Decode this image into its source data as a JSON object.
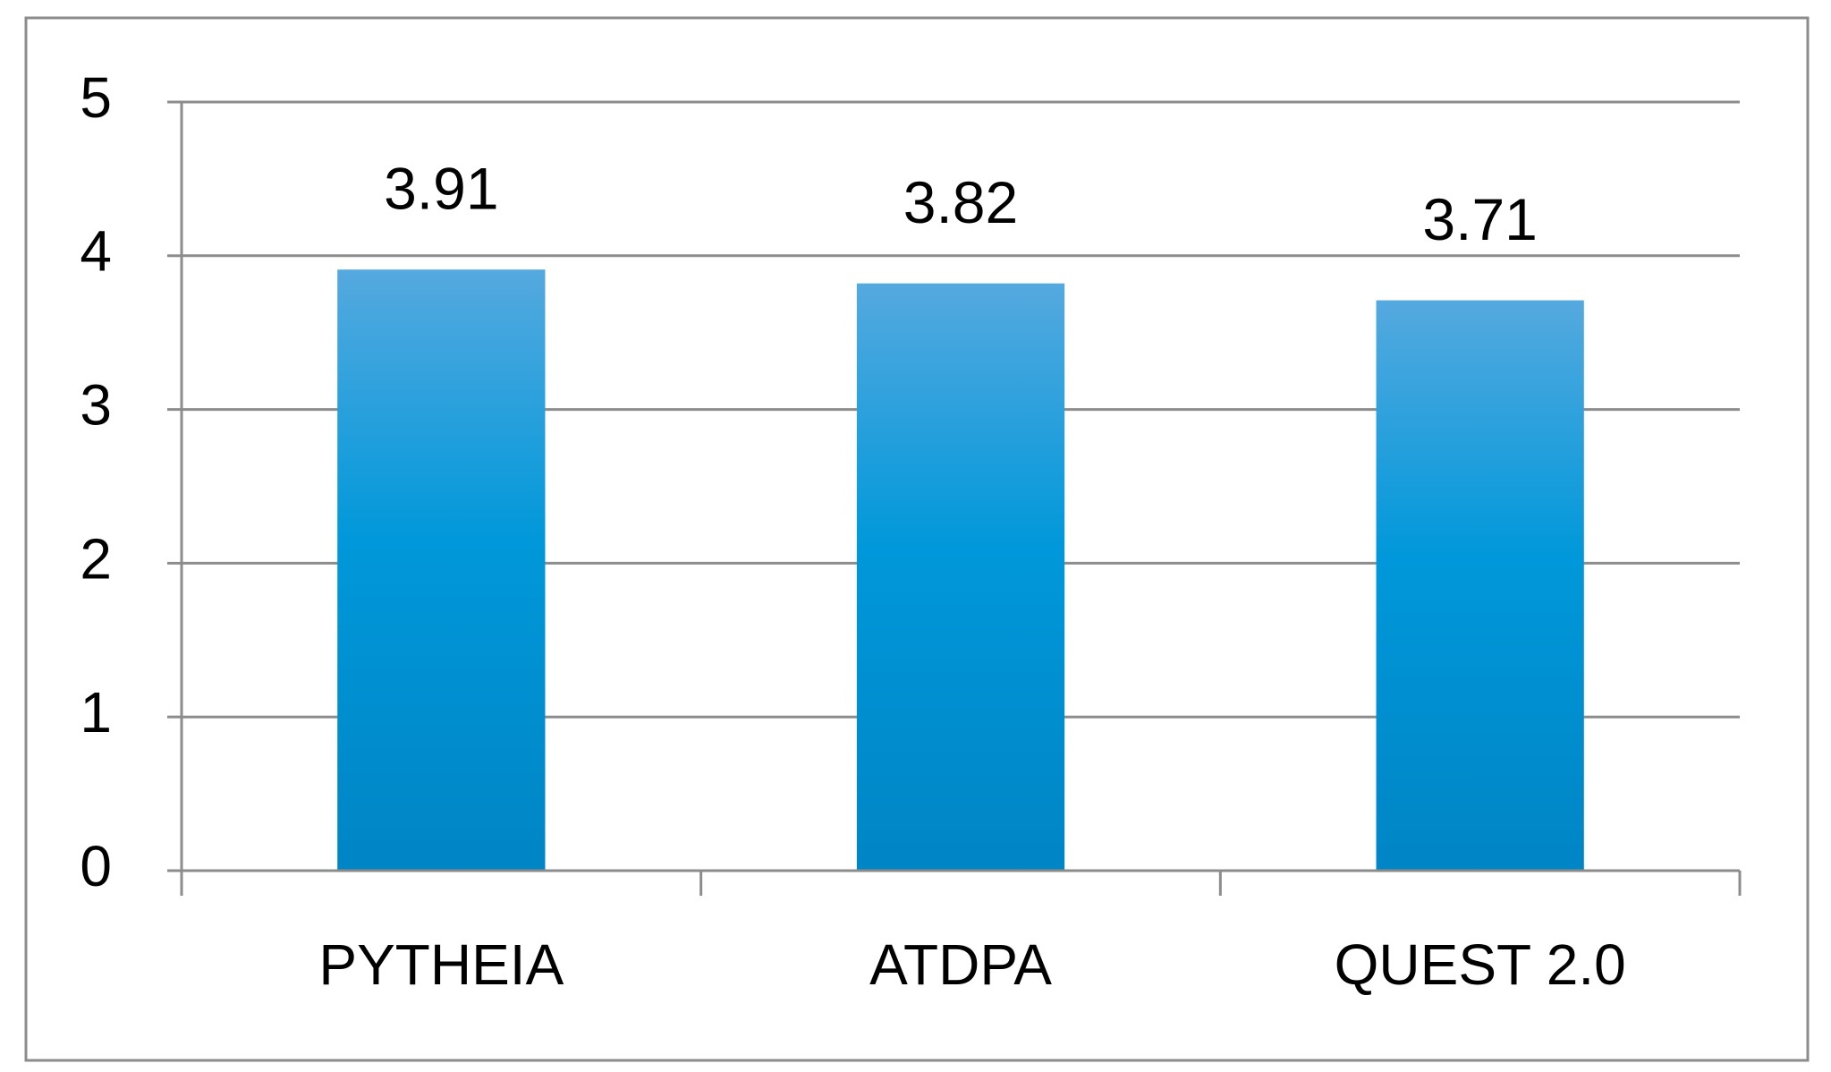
{
  "chart_data": {
    "type": "bar",
    "categories": [
      "PYTHEIA",
      "ATDPA",
      "QUEST 2.0"
    ],
    "values": [
      3.91,
      3.82,
      3.71
    ],
    "color": "#0098da",
    "ylim": [
      0,
      5
    ],
    "yticks": [
      0,
      1,
      2,
      3,
      4,
      5
    ],
    "grid": true
  }
}
